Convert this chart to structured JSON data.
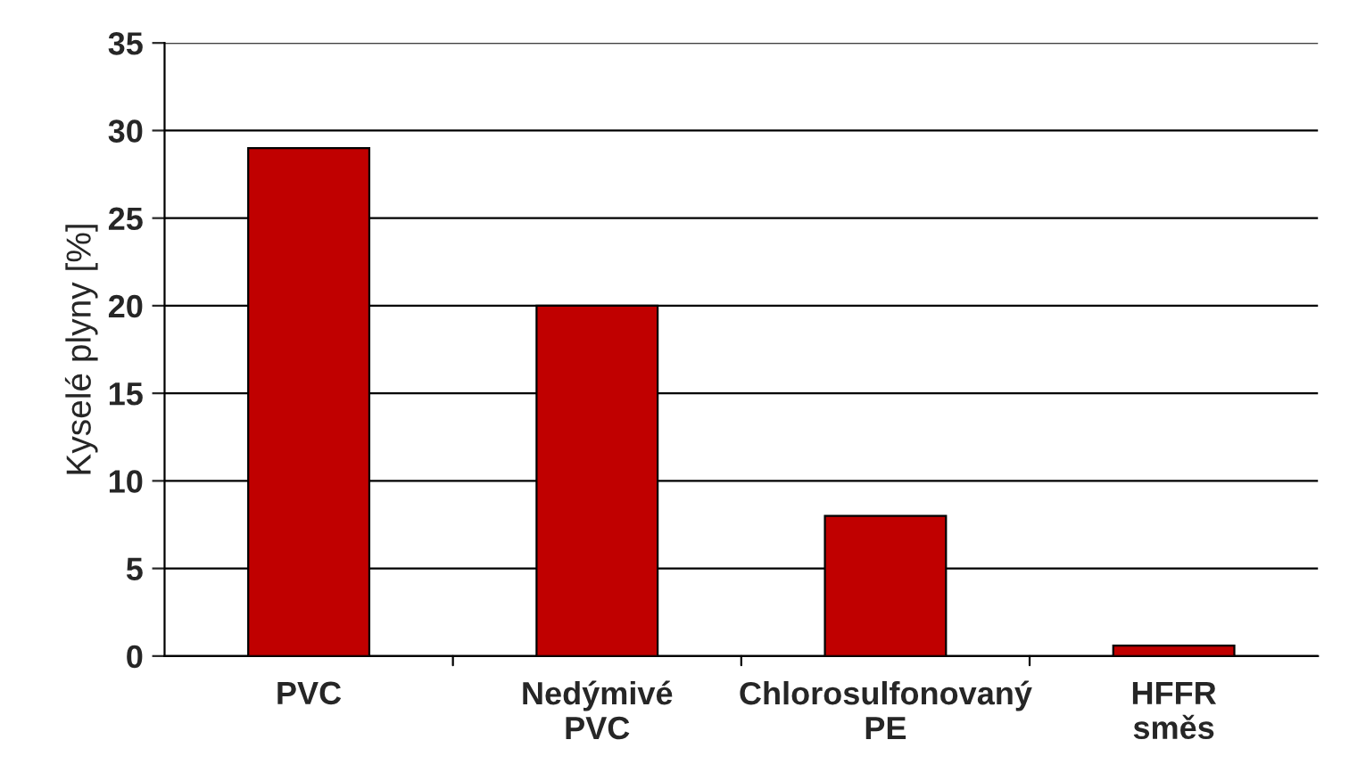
{
  "chart_data": {
    "type": "bar",
    "ylabel": "Kyselé plyny [%]",
    "categories": [
      "PVC",
      "Nedýmivé\nPVC",
      "Chlorosulfonovaný\nPE",
      "HFFR\nsměs"
    ],
    "values": [
      29,
      20,
      8,
      0.6
    ],
    "color": "#c00000",
    "ylim": [
      0,
      35
    ],
    "yticks": [
      0,
      5,
      10,
      15,
      20,
      25,
      30,
      35
    ],
    "grid": "y"
  }
}
